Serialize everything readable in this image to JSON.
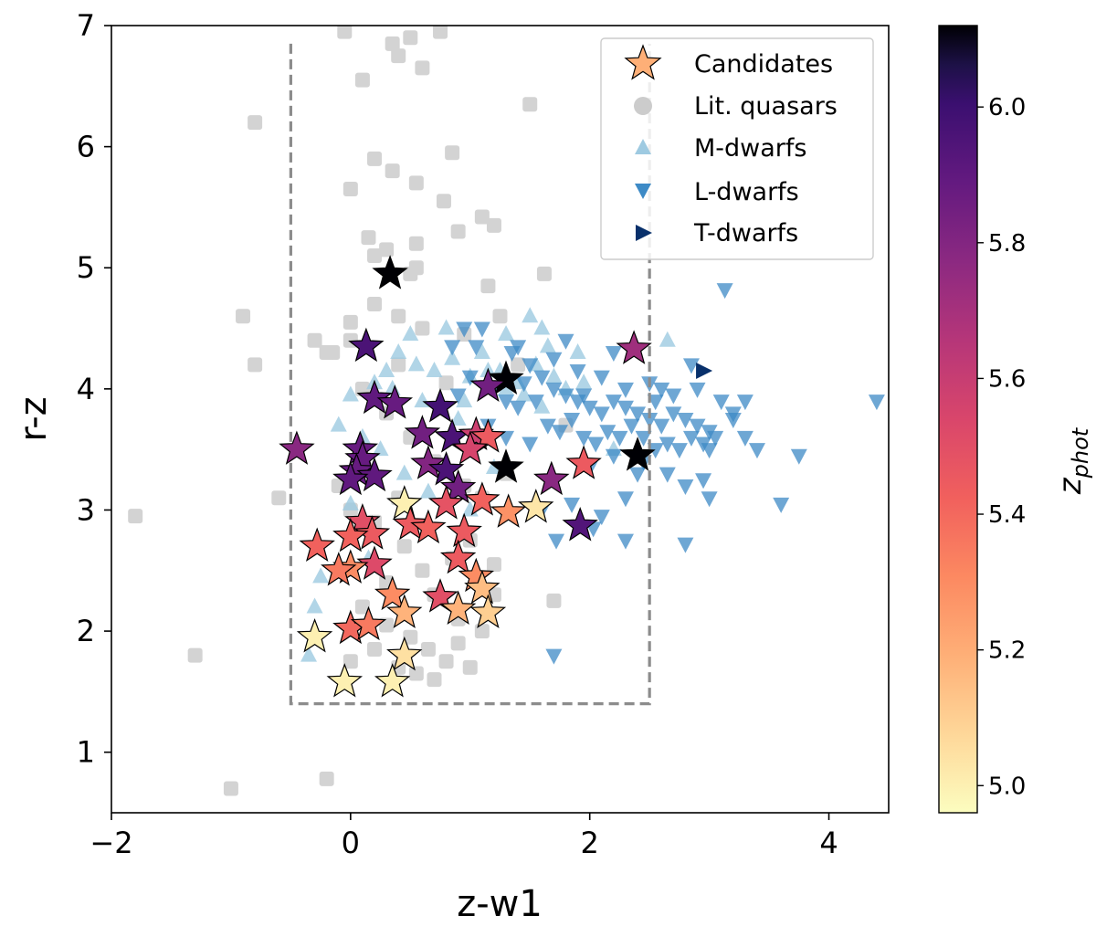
{
  "chart_data": {
    "type": "scatter",
    "xlabel": "z-w1",
    "ylabel": "r-z",
    "xlim": [
      -2,
      4.5
    ],
    "ylim": [
      0.5,
      7
    ],
    "x_ticks": [
      -2,
      0,
      2,
      4
    ],
    "x_tick_labels": [
      "−2",
      "0",
      "2",
      "4"
    ],
    "y_ticks": [
      1,
      2,
      3,
      4,
      5,
      6,
      7
    ],
    "y_tick_labels": [
      "1",
      "2",
      "3",
      "4",
      "5",
      "6",
      "7"
    ],
    "grid": false,
    "legend_position": "top-right",
    "selection_box": {
      "x": [
        -0.5,
        2.5
      ],
      "y": [
        1.4,
        6.85
      ],
      "style": "dashed",
      "color": "#8c8c8c"
    },
    "colorbar": {
      "label": "z_phot",
      "label_main": "z",
      "label_sub": "phot",
      "range": [
        4.96,
        6.12
      ],
      "ticks": [
        5.0,
        5.2,
        5.4,
        5.6,
        5.8,
        6.0
      ],
      "tick_labels": [
        "5.0",
        "5.2",
        "5.4",
        "5.6",
        "5.8",
        "6.0"
      ],
      "colormap": "magma_r"
    },
    "legend": [
      {
        "key": "candidates",
        "label": "Candidates"
      },
      {
        "key": "quasars",
        "label": "Lit. quasars"
      },
      {
        "key": "mdwarfs",
        "label": "M-dwarfs"
      },
      {
        "key": "ldwarfs",
        "label": "L-dwarfs"
      },
      {
        "key": "tdwarfs",
        "label": "T-dwarfs"
      }
    ],
    "series": [
      {
        "name": "Lit. quasars",
        "key": "quasars",
        "marker": "square",
        "color": "#d3d3d3",
        "points": [
          [
            -0.05,
            6.95
          ],
          [
            0.35,
            6.85
          ],
          [
            0.5,
            6.9
          ],
          [
            0.75,
            6.95
          ],
          [
            0.4,
            6.75
          ],
          [
            0.6,
            6.65
          ],
          [
            0.1,
            6.55
          ],
          [
            1.5,
            6.35
          ],
          [
            -0.8,
            6.2
          ],
          [
            0.85,
            5.95
          ],
          [
            0.2,
            5.9
          ],
          [
            0.35,
            5.8
          ],
          [
            0.55,
            5.7
          ],
          [
            0.0,
            5.65
          ],
          [
            0.78,
            5.55
          ],
          [
            1.1,
            5.42
          ],
          [
            0.15,
            5.25
          ],
          [
            0.3,
            5.15
          ],
          [
            0.55,
            5.2
          ],
          [
            0.2,
            5.1
          ],
          [
            0.9,
            5.3
          ],
          [
            1.2,
            5.35
          ],
          [
            0.0,
            4.55
          ],
          [
            0.4,
            4.6
          ],
          [
            0.6,
            4.5
          ],
          [
            0.95,
            4.45
          ],
          [
            1.25,
            4.6
          ],
          [
            1.4,
            4.2
          ],
          [
            0.1,
            4.0
          ],
          [
            -0.15,
            4.3
          ],
          [
            -0.9,
            4.6
          ],
          [
            -0.8,
            4.2
          ],
          [
            0.2,
            4.7
          ],
          [
            0.5,
            4.95
          ],
          [
            0.55,
            5.0
          ],
          [
            1.15,
            4.85
          ],
          [
            1.62,
            4.95
          ],
          [
            0.8,
            4.05
          ],
          [
            0.3,
            3.8
          ],
          [
            0.5,
            3.6
          ],
          [
            0.7,
            3.4
          ],
          [
            0.95,
            3.2
          ],
          [
            1.1,
            3.1
          ],
          [
            0.4,
            3.1
          ],
          [
            0.0,
            3.0
          ],
          [
            -0.1,
            3.2
          ],
          [
            -0.6,
            3.1
          ],
          [
            0.2,
            2.9
          ],
          [
            0.45,
            2.7
          ],
          [
            0.6,
            2.5
          ],
          [
            0.3,
            2.4
          ],
          [
            0.7,
            2.3
          ],
          [
            0.9,
            2.1
          ],
          [
            1.1,
            2.0
          ],
          [
            1.2,
            2.3
          ],
          [
            0.1,
            2.2
          ],
          [
            0.3,
            2.05
          ],
          [
            0.5,
            1.95
          ],
          [
            0.65,
            1.85
          ],
          [
            0.8,
            1.75
          ],
          [
            0.4,
            1.7
          ],
          [
            0.2,
            1.85
          ],
          [
            0.0,
            1.75
          ],
          [
            0.55,
            1.65
          ],
          [
            0.7,
            1.6
          ],
          [
            0.9,
            1.9
          ],
          [
            1.0,
            1.7
          ],
          [
            1.7,
            2.25
          ],
          [
            1.2,
            2.55
          ],
          [
            1.0,
            2.75
          ],
          [
            0.85,
            2.6
          ],
          [
            1.3,
            3.3
          ],
          [
            1.8,
            3.7
          ],
          [
            -0.3,
            4.4
          ],
          [
            -1.8,
            2.95
          ],
          [
            -1.3,
            1.8
          ],
          [
            -1.0,
            0.7
          ],
          [
            -0.2,
            0.78
          ],
          [
            -0.2,
            4.3
          ],
          [
            0.0,
            4.4
          ],
          [
            0.4,
            4.2
          ]
        ]
      },
      {
        "name": "M-dwarfs",
        "key": "mdwarfs",
        "marker": "triangle-up",
        "color": "#9ecae1",
        "points": [
          [
            0.4,
            4.3
          ],
          [
            0.55,
            4.2
          ],
          [
            0.7,
            4.15
          ],
          [
            0.85,
            4.25
          ],
          [
            1.0,
            4.1
          ],
          [
            1.1,
            4.3
          ],
          [
            1.25,
            4.15
          ],
          [
            1.4,
            4.05
          ],
          [
            1.55,
            4.2
          ],
          [
            1.65,
            4.35
          ],
          [
            1.7,
            4.1
          ],
          [
            1.8,
            4.0
          ],
          [
            1.6,
            3.85
          ],
          [
            1.45,
            3.95
          ],
          [
            1.3,
            4.0
          ],
          [
            0.95,
            3.9
          ],
          [
            0.6,
            3.9
          ],
          [
            0.3,
            4.15
          ],
          [
            0.5,
            4.45
          ],
          [
            0.8,
            4.5
          ],
          [
            1.5,
            4.6
          ],
          [
            1.6,
            4.5
          ],
          [
            1.3,
            4.45
          ],
          [
            0.2,
            4.05
          ],
          [
            0.0,
            3.95
          ],
          [
            -0.1,
            3.7
          ],
          [
            0.1,
            3.6
          ],
          [
            0.25,
            3.5
          ],
          [
            0.45,
            3.3
          ],
          [
            0.65,
            3.15
          ],
          [
            1.0,
            3.0
          ],
          [
            0.15,
            2.6
          ],
          [
            -0.25,
            2.45
          ],
          [
            -0.3,
            2.2
          ],
          [
            -0.35,
            1.8
          ],
          [
            0.0,
            3.05
          ],
          [
            2.65,
            4.4
          ],
          [
            2.2,
            3.5
          ],
          [
            1.2,
            3.35
          ],
          [
            0.35,
            4.0
          ],
          [
            1.9,
            4.3
          ],
          [
            1.15,
            4.15
          ],
          [
            1.95,
            4.05
          ],
          [
            0.9,
            3.75
          ]
        ]
      },
      {
        "name": "L-dwarfs",
        "key": "ldwarfs",
        "marker": "triangle-down",
        "color": "#3d8ac6",
        "points": [
          [
            1.5,
            4.2
          ],
          [
            1.6,
            4.1
          ],
          [
            1.7,
            4.0
          ],
          [
            1.8,
            3.95
          ],
          [
            1.9,
            3.9
          ],
          [
            2.0,
            3.85
          ],
          [
            2.1,
            3.8
          ],
          [
            2.2,
            3.9
          ],
          [
            2.3,
            3.85
          ],
          [
            2.4,
            3.8
          ],
          [
            2.5,
            3.75
          ],
          [
            2.6,
            3.7
          ],
          [
            2.7,
            3.8
          ],
          [
            2.8,
            3.75
          ],
          [
            2.9,
            3.7
          ],
          [
            3.0,
            3.65
          ],
          [
            3.1,
            3.9
          ],
          [
            3.2,
            3.8
          ],
          [
            3.3,
            3.9
          ],
          [
            1.4,
            3.85
          ],
          [
            1.55,
            3.9
          ],
          [
            1.65,
            3.7
          ],
          [
            1.75,
            3.65
          ],
          [
            1.85,
            3.75
          ],
          [
            1.95,
            3.6
          ],
          [
            2.05,
            3.55
          ],
          [
            2.15,
            3.65
          ],
          [
            2.25,
            3.6
          ],
          [
            2.35,
            3.7
          ],
          [
            2.45,
            3.6
          ],
          [
            2.55,
            3.5
          ],
          [
            2.65,
            3.55
          ],
          [
            2.75,
            3.5
          ],
          [
            2.85,
            3.6
          ],
          [
            2.95,
            3.55
          ],
          [
            3.05,
            3.6
          ],
          [
            1.3,
            3.9
          ],
          [
            1.2,
            4.0
          ],
          [
            1.45,
            4.05
          ],
          [
            1.7,
            4.25
          ],
          [
            1.9,
            4.15
          ],
          [
            2.1,
            4.1
          ],
          [
            2.3,
            4.0
          ],
          [
            2.5,
            4.05
          ],
          [
            2.7,
            3.95
          ],
          [
            2.9,
            4.0
          ],
          [
            1.0,
            4.1
          ],
          [
            0.85,
            4.35
          ],
          [
            0.95,
            4.5
          ],
          [
            1.1,
            4.5
          ],
          [
            1.35,
            4.3
          ],
          [
            1.8,
            4.4
          ],
          [
            2.2,
            4.3
          ],
          [
            2.85,
            4.2
          ],
          [
            3.13,
            4.82
          ],
          [
            1.6,
            3.0
          ],
          [
            1.85,
            3.05
          ],
          [
            2.1,
            2.95
          ],
          [
            2.3,
            3.1
          ],
          [
            2.4,
            3.3
          ],
          [
            2.65,
            3.3
          ],
          [
            2.8,
            3.2
          ],
          [
            3.0,
            3.5
          ],
          [
            3.4,
            3.5
          ],
          [
            3.75,
            3.45
          ],
          [
            3.6,
            3.05
          ],
          [
            3.0,
            3.1
          ],
          [
            1.72,
            2.75
          ],
          [
            2.3,
            2.75
          ],
          [
            2.03,
            2.85
          ],
          [
            2.8,
            2.72
          ],
          [
            1.7,
            1.8
          ],
          [
            4.4,
            3.9
          ],
          [
            2.55,
            3.9
          ],
          [
            2.6,
            4.0
          ],
          [
            1.95,
            3.95
          ],
          [
            2.45,
            3.4
          ],
          [
            2.2,
            3.45
          ],
          [
            1.5,
            3.55
          ],
          [
            1.3,
            3.6
          ],
          [
            1.15,
            3.7
          ],
          [
            3.3,
            3.6
          ],
          [
            2.95,
            3.25
          ],
          [
            3.2,
            3.75
          ],
          [
            1.4,
            4.35
          ],
          [
            2.0,
            3.35
          ],
          [
            0.9,
            3.95
          ],
          [
            1.05,
            4.35
          ]
        ]
      },
      {
        "name": "T-dwarfs",
        "key": "tdwarfs",
        "marker": "triangle-right",
        "color": "#08306b",
        "points": [
          [
            2.95,
            4.15
          ]
        ]
      },
      {
        "name": "Candidates",
        "key": "candidates",
        "marker": "star",
        "color_by": "z_phot",
        "points": [
          [
            0.33,
            4.95,
            6.12
          ],
          [
            0.13,
            4.35,
            5.96
          ],
          [
            2.37,
            4.33,
            5.72
          ],
          [
            1.3,
            4.08,
            6.12
          ],
          [
            1.15,
            4.02,
            5.85
          ],
          [
            0.2,
            3.92,
            5.9
          ],
          [
            0.37,
            3.88,
            5.88
          ],
          [
            0.75,
            3.85,
            5.98
          ],
          [
            -0.45,
            3.5,
            5.78
          ],
          [
            0.08,
            3.5,
            5.88
          ],
          [
            0.1,
            3.42,
            5.88
          ],
          [
            0.6,
            3.63,
            5.85
          ],
          [
            0.85,
            3.6,
            5.96
          ],
          [
            1.05,
            3.62,
            5.58
          ],
          [
            1.15,
            3.6,
            5.45
          ],
          [
            1.0,
            3.5,
            5.55
          ],
          [
            0.65,
            3.38,
            5.8
          ],
          [
            0.8,
            3.33,
            5.96
          ],
          [
            1.3,
            3.35,
            6.12
          ],
          [
            2.4,
            3.45,
            6.12
          ],
          [
            1.68,
            3.25,
            5.78
          ],
          [
            1.95,
            3.38,
            5.45
          ],
          [
            1.92,
            2.87,
            5.94
          ],
          [
            0.05,
            3.32,
            5.88
          ],
          [
            0.2,
            3.28,
            5.9
          ],
          [
            0.0,
            3.25,
            5.9
          ],
          [
            0.9,
            3.18,
            5.85
          ],
          [
            0.8,
            3.05,
            5.48
          ],
          [
            1.1,
            3.08,
            5.42
          ],
          [
            1.32,
            2.98,
            5.28
          ],
          [
            1.55,
            3.02,
            5.03
          ],
          [
            0.45,
            3.05,
            5.0
          ],
          [
            0.1,
            2.9,
            5.5
          ],
          [
            0.5,
            2.88,
            5.45
          ],
          [
            0.65,
            2.85,
            5.42
          ],
          [
            0.18,
            2.8,
            5.45
          ],
          [
            0.0,
            2.78,
            5.42
          ],
          [
            0.95,
            2.82,
            5.45
          ],
          [
            -0.28,
            2.7,
            5.42
          ],
          [
            0.2,
            2.55,
            5.52
          ],
          [
            0.0,
            2.52,
            5.3
          ],
          [
            -0.1,
            2.5,
            5.35
          ],
          [
            0.9,
            2.6,
            5.45
          ],
          [
            1.05,
            2.45,
            5.3
          ],
          [
            1.1,
            2.35,
            5.15
          ],
          [
            0.35,
            2.3,
            5.3
          ],
          [
            0.75,
            2.28,
            5.5
          ],
          [
            0.45,
            2.15,
            5.18
          ],
          [
            0.9,
            2.18,
            5.18
          ],
          [
            1.15,
            2.15,
            5.1
          ],
          [
            -0.3,
            1.95,
            5.0
          ],
          [
            0.0,
            2.02,
            5.4
          ],
          [
            0.15,
            2.05,
            5.35
          ],
          [
            0.45,
            1.8,
            5.05
          ],
          [
            -0.05,
            1.58,
            5.0
          ],
          [
            0.35,
            1.58,
            5.0
          ]
        ]
      }
    ]
  }
}
